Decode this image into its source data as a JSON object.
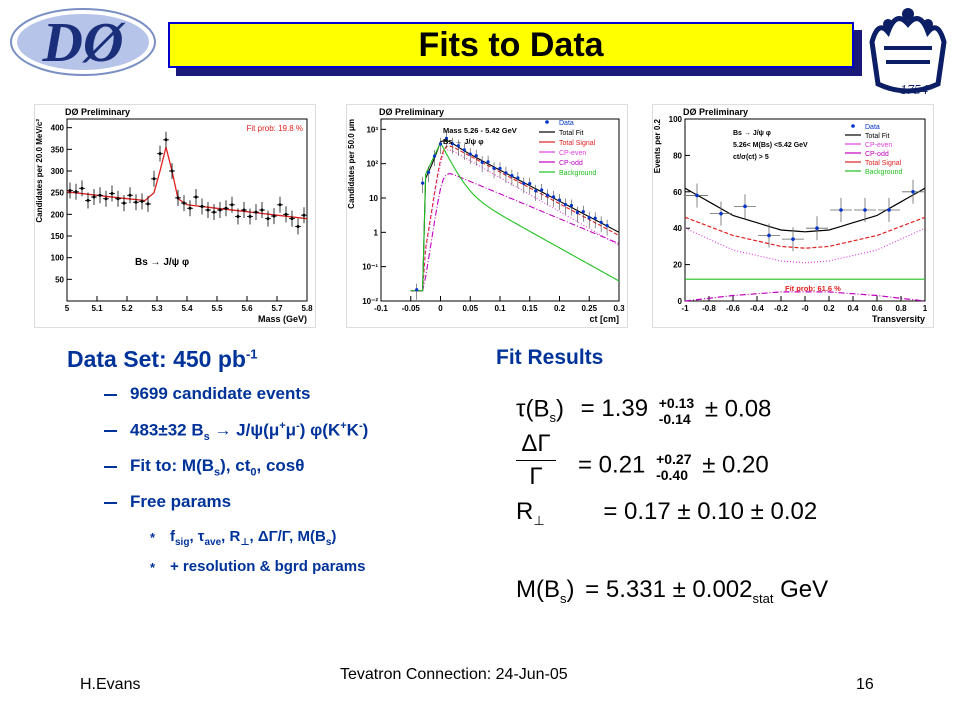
{
  "slide": {
    "title": "Fits to Data",
    "page_number": "16",
    "footer_left": "H.Evans",
    "footer_center": "Tevatron Connection: 24-Jun-05",
    "colors": {
      "title_bg": "#ffff00",
      "title_border": "#0000cc",
      "text_blue": "#003399"
    }
  },
  "logos": {
    "left": {
      "icon": "d0-logo",
      "text": "DØ"
    },
    "right": {
      "icon": "columbia-crown-logo",
      "text": "1754"
    }
  },
  "data_set": {
    "title": "Data Set: 450 pb",
    "title_sup": "-1",
    "bullets": [
      {
        "text": "9699 candidate events"
      },
      {
        "parts": [
          "483±32 B",
          "s",
          " → J/ψ(μ",
          "+",
          "μ",
          "-",
          ") φ(K",
          "+",
          "K",
          "-",
          ")"
        ]
      },
      {
        "parts": [
          "Fit to: M(B",
          "s",
          "), ct",
          "0",
          ", cosθ"
        ]
      },
      {
        "text": "Free params"
      }
    ],
    "sub_bullets": [
      {
        "parts": [
          "f",
          "sig",
          ", τ",
          "ave",
          ", R",
          "⊥",
          ", ΔΓ/Γ, M(B",
          "s",
          ")"
        ]
      },
      {
        "text": "+ resolution & bgrd params"
      }
    ]
  },
  "fit_results": {
    "title": "Fit Results",
    "tau": {
      "lhs": "τ(B",
      "lhs_sub": "s",
      "lhs_end": ")",
      "eq": "= 1.39",
      "up": "+0.13",
      "down": "-0.14",
      "syst": "± 0.08"
    },
    "dgamma": {
      "num": "ΔΓ",
      "den": "Γ",
      "eq": "= 0.21",
      "up": "+0.27",
      "down": "-0.40",
      "syst": "± 0.20"
    },
    "rperp": {
      "lhs": "R",
      "lhs_sub": "⊥",
      "eq": "= 0.17 ± 0.10 ± 0.02"
    },
    "mass": {
      "lhs": "M(B",
      "lhs_sub": "s",
      "lhs_end": ")",
      "eq": "= 5.331 ± 0.002",
      "stat": "stat",
      "unit": " GeV"
    }
  },
  "chart_data": [
    {
      "type": "scatter",
      "title": "DØ Preliminary",
      "xlabel": "Mass (GeV)",
      "ylabel": "Candidates per 20.0 MeV/c²",
      "annotation": "Fit prob: 19.8 %",
      "label": "Bs → J/ψ φ",
      "xlim": [
        5.0,
        5.8
      ],
      "ylim": [
        0,
        420
      ],
      "xticks": [
        "5",
        "5.1",
        "5.2",
        "5.3",
        "5.4",
        "5.5",
        "5.6",
        "5.7",
        "5.8"
      ],
      "yticks": [
        "50",
        "100",
        "150",
        "200",
        "250",
        "300",
        "350",
        "400"
      ],
      "series": [
        {
          "name": "Data",
          "x": [
            5.01,
            5.03,
            5.05,
            5.07,
            5.09,
            5.11,
            5.13,
            5.15,
            5.17,
            5.19,
            5.21,
            5.23,
            5.25,
            5.27,
            5.29,
            5.31,
            5.33,
            5.35,
            5.37,
            5.39,
            5.41,
            5.43,
            5.45,
            5.47,
            5.49,
            5.51,
            5.53,
            5.55,
            5.57,
            5.59,
            5.61,
            5.63,
            5.65,
            5.67,
            5.69,
            5.71,
            5.73,
            5.75,
            5.77,
            5.79
          ],
          "y": [
            255,
            252,
            260,
            232,
            240,
            244,
            236,
            248,
            236,
            226,
            244,
            228,
            230,
            224,
            282,
            340,
            372,
            300,
            238,
            226,
            214,
            240,
            218,
            210,
            205,
            210,
            214,
            222,
            195,
            210,
            195,
            205,
            210,
            190,
            196,
            222,
            200,
            190,
            172,
            198
          ]
        },
        {
          "name": "Fit",
          "x": [
            5.0,
            5.1,
            5.2,
            5.26,
            5.29,
            5.31,
            5.33,
            5.35,
            5.37,
            5.4,
            5.5,
            5.6,
            5.7,
            5.8
          ],
          "y": [
            252,
            244,
            236,
            232,
            250,
            300,
            355,
            300,
            236,
            222,
            214,
            206,
            198,
            190
          ]
        }
      ]
    },
    {
      "type": "line",
      "title": "DØ Preliminary",
      "xlabel": "ct [cm]",
      "ylabel": "Candidates per 50.0 μm",
      "yscale": "log",
      "annotations": [
        "Mass 5.26 - 5.42 GeV",
        "Bs → J/ψ φ"
      ],
      "xlim": [
        -0.1,
        0.3
      ],
      "ylim": [
        0.01,
        2000
      ],
      "xticks": [
        "-0.1",
        "-0.05",
        "0",
        "0.05",
        "0.1",
        "0.15",
        "0.2",
        "0.25",
        "0.3"
      ],
      "yticks": [
        "10⁻²",
        "10⁻¹",
        "1",
        "10",
        "10²",
        "10³"
      ],
      "series": [
        {
          "name": "Data"
        },
        {
          "name": "Total Fit"
        },
        {
          "name": "Total Signal"
        },
        {
          "name": "CP-even"
        },
        {
          "name": "CP-odd"
        },
        {
          "name": "Background"
        }
      ]
    },
    {
      "type": "line",
      "title": "DØ Preliminary",
      "xlabel": "Transversity",
      "ylabel": "Events per 0.2",
      "annotations": [
        "Bs → J/ψ φ",
        "5.26< M(Bs) <5.42 GeV",
        "ct/σ(ct) > 5"
      ],
      "annotation_fit": "Fit prob: 61.6 %",
      "xlim": [
        -1,
        1
      ],
      "ylim": [
        0,
        100
      ],
      "xticks": [
        "-1",
        "-0.8",
        "-0.6",
        "-0.4",
        "-0.2",
        "-0",
        "0.2",
        "0.4",
        "0.6",
        "0.8",
        "1"
      ],
      "yticks": [
        "0",
        "20",
        "40",
        "60",
        "80",
        "100"
      ],
      "series": [
        {
          "name": "Data",
          "x": [
            -0.9,
            -0.7,
            -0.5,
            -0.3,
            -0.1,
            0.1,
            0.3,
            0.5,
            0.7,
            0.9
          ],
          "y": [
            58,
            48,
            52,
            36,
            34,
            40,
            50,
            50,
            50,
            60
          ]
        },
        {
          "name": "Total Fit",
          "x": [
            -1,
            -0.6,
            -0.2,
            0,
            0.2,
            0.6,
            1
          ],
          "y": [
            62,
            47,
            39,
            38,
            39,
            47,
            62
          ]
        },
        {
          "name": "CP-even",
          "x": [
            -1,
            -0.6,
            -0.2,
            0,
            0.2,
            0.6,
            1
          ],
          "y": [
            40,
            28,
            22,
            21,
            22,
            28,
            40
          ]
        },
        {
          "name": "CP-odd",
          "x": [
            -1,
            -0.6,
            -0.2,
            0,
            0.2,
            0.6,
            1
          ],
          "y": [
            0,
            3,
            5,
            5,
            5,
            3,
            0
          ]
        },
        {
          "name": "Total Signal",
          "x": [
            -1,
            -0.6,
            -0.2,
            0,
            0.2,
            0.6,
            1
          ],
          "y": [
            46,
            36,
            30,
            29,
            30,
            36,
            46
          ]
        },
        {
          "name": "Background",
          "x": [
            -1,
            -0.6,
            -0.2,
            0,
            0.2,
            0.6,
            1
          ],
          "y": [
            12,
            12,
            12,
            12,
            12,
            12,
            12
          ]
        }
      ]
    }
  ]
}
